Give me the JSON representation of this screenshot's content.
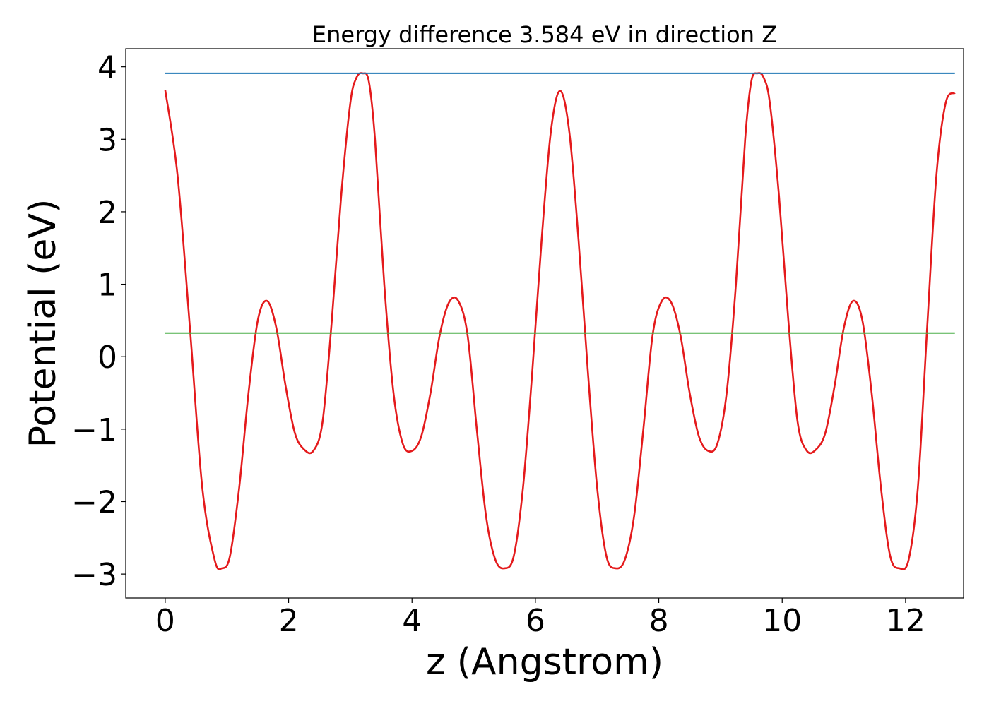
{
  "chart_data": {
    "type": "line",
    "title": "Energy difference 3.584 eV in direction Z",
    "xlabel": "z (Angstrom)",
    "ylabel": "Potential (eV)",
    "xlim": [
      -0.64,
      12.94
    ],
    "ylim": [
      -3.33,
      4.25
    ],
    "xticks": [
      0,
      2,
      4,
      6,
      8,
      10,
      12
    ],
    "xtick_labels": [
      "0",
      "2",
      "4",
      "6",
      "8",
      "10",
      "12"
    ],
    "yticks": [
      -3,
      -2,
      -1,
      0,
      1,
      2,
      3,
      4
    ],
    "ytick_labels": [
      "−3",
      "−2",
      "−1",
      "0",
      "1",
      "2",
      "3",
      "4"
    ],
    "grid": false,
    "legend": "none",
    "series": [
      {
        "color": "#e41a1c",
        "x": [
          0.0,
          0.2,
          0.4,
          0.6,
          0.8,
          0.92,
          1.05,
          1.2,
          1.35,
          1.5,
          1.65,
          1.8,
          1.95,
          2.1,
          2.25,
          2.4,
          2.55,
          2.7,
          2.85,
          3.0,
          3.1,
          3.2,
          3.3,
          3.4,
          3.55,
          3.7,
          3.85,
          4.0,
          4.15,
          4.3,
          4.45,
          4.6,
          4.75,
          4.9,
          5.05,
          5.2,
          5.35,
          5.5,
          5.65,
          5.8,
          5.95,
          6.1,
          6.25,
          6.4,
          6.55,
          6.7,
          6.85,
          7.0,
          7.15,
          7.3,
          7.45,
          7.6,
          7.75,
          7.9,
          8.05,
          8.2,
          8.35,
          8.5,
          8.65,
          8.8,
          8.95,
          9.1,
          9.25,
          9.4,
          9.5,
          9.6,
          9.7,
          9.8,
          9.95,
          10.1,
          10.25,
          10.4,
          10.55,
          10.7,
          10.85,
          11.0,
          11.15,
          11.3,
          11.45,
          11.6,
          11.75,
          11.9,
          12.05,
          12.2,
          12.35,
          12.5,
          12.65,
          12.8
        ],
        "y": [
          3.68,
          2.5,
          0.4,
          -1.8,
          -2.8,
          -2.92,
          -2.75,
          -1.8,
          -0.5,
          0.5,
          0.77,
          0.4,
          -0.4,
          -1.05,
          -1.28,
          -1.3,
          -0.9,
          0.5,
          2.2,
          3.5,
          3.85,
          3.91,
          3.8,
          3.0,
          1.0,
          -0.5,
          -1.2,
          -1.3,
          -1.1,
          -0.5,
          0.3,
          0.75,
          0.77,
          0.3,
          -1.0,
          -2.2,
          -2.8,
          -2.92,
          -2.75,
          -1.8,
          -0.2,
          1.6,
          3.1,
          3.67,
          3.1,
          1.6,
          -0.2,
          -1.8,
          -2.75,
          -2.92,
          -2.8,
          -2.2,
          -1.0,
          0.3,
          0.77,
          0.75,
          0.3,
          -0.5,
          -1.1,
          -1.3,
          -1.2,
          -0.5,
          1.0,
          3.0,
          3.8,
          3.91,
          3.85,
          3.5,
          2.2,
          0.5,
          -0.9,
          -1.3,
          -1.28,
          -1.05,
          -0.4,
          0.4,
          0.77,
          0.5,
          -0.5,
          -1.8,
          -2.75,
          -2.92,
          -2.8,
          -1.8,
          0.4,
          2.5,
          3.5,
          3.64
        ]
      },
      {
        "color": "#1f77b4",
        "x": [
          0.0,
          12.8
        ],
        "y": [
          3.91,
          3.91
        ]
      },
      {
        "color": "#4daf4a",
        "x": [
          0.0,
          12.8
        ],
        "y": [
          0.326,
          0.326
        ]
      }
    ]
  }
}
